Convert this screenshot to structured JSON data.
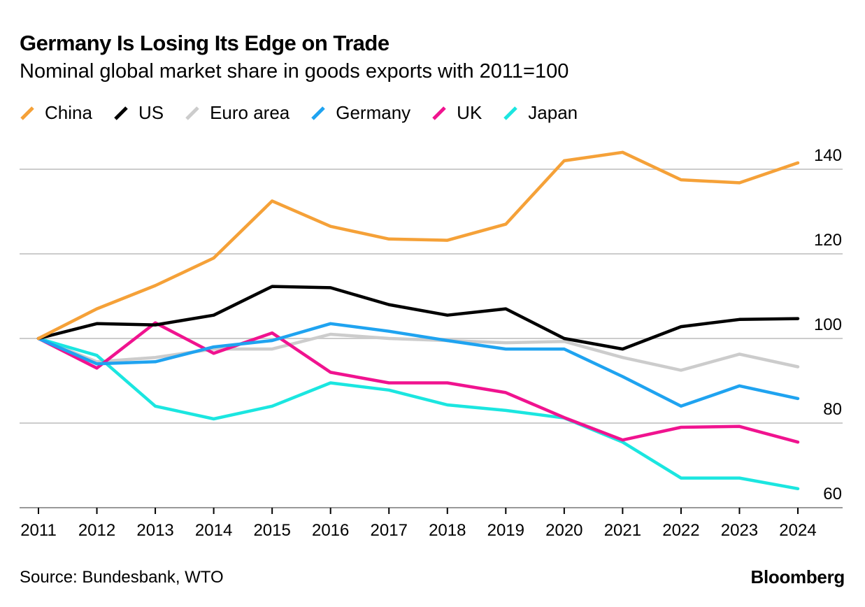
{
  "header": {
    "title": "Germany Is Losing Its Edge on Trade",
    "subtitle": "Nominal global market share in goods exports with 2011=100"
  },
  "footer": {
    "source": "Source: Bundesbank, WTO",
    "brand": "Bloomberg"
  },
  "chart_data": {
    "type": "line",
    "title": "Germany Is Losing Its Edge on Trade",
    "subtitle": "Nominal global market share in goods exports with 2011=100",
    "x": [
      "2011",
      "2012",
      "2013",
      "2014",
      "2015",
      "2016",
      "2017",
      "2018",
      "2019",
      "2020",
      "2021",
      "2022",
      "2023",
      "2024"
    ],
    "ylim": [
      60,
      140
    ],
    "yticks": [
      60,
      80,
      100,
      120,
      140
    ],
    "grid": true,
    "legend_position": "top-left",
    "series": [
      {
        "name": "China",
        "color": "#F5A138",
        "values": [
          100,
          107,
          112.5,
          119,
          132.5,
          126.5,
          123.5,
          123.2,
          127,
          142,
          144,
          137.5,
          136.8,
          141.5
        ]
      },
      {
        "name": "US",
        "color": "#000000",
        "values": [
          100,
          103.5,
          103.2,
          105.5,
          112.3,
          112,
          108,
          105.5,
          107,
          100,
          97.5,
          102.8,
          104.5,
          104.7
        ]
      },
      {
        "name": "Euro area",
        "color": "#CCCCCC",
        "values": [
          100,
          94.5,
          95.5,
          97.5,
          97.5,
          101,
          100,
          99.5,
          99,
          99.3,
          95.5,
          92.5,
          96.3,
          93.3
        ]
      },
      {
        "name": "Germany",
        "color": "#1FA3F0",
        "values": [
          100,
          94,
          94.5,
          98,
          99.5,
          103.5,
          101.7,
          99.5,
          97.5,
          97.5,
          91,
          84,
          88.8,
          85.8
        ]
      },
      {
        "name": "UK",
        "color": "#F0138F",
        "values": [
          100,
          93,
          103.7,
          96.5,
          101.3,
          92,
          89.5,
          89.5,
          87.2,
          81.3,
          76,
          79,
          79.2,
          75.5
        ]
      },
      {
        "name": "Japan",
        "color": "#1BE6E0",
        "values": [
          100,
          96,
          84,
          81,
          84,
          89.5,
          87.8,
          84.3,
          83,
          81.2,
          75.5,
          67,
          67,
          64.5
        ]
      }
    ]
  }
}
